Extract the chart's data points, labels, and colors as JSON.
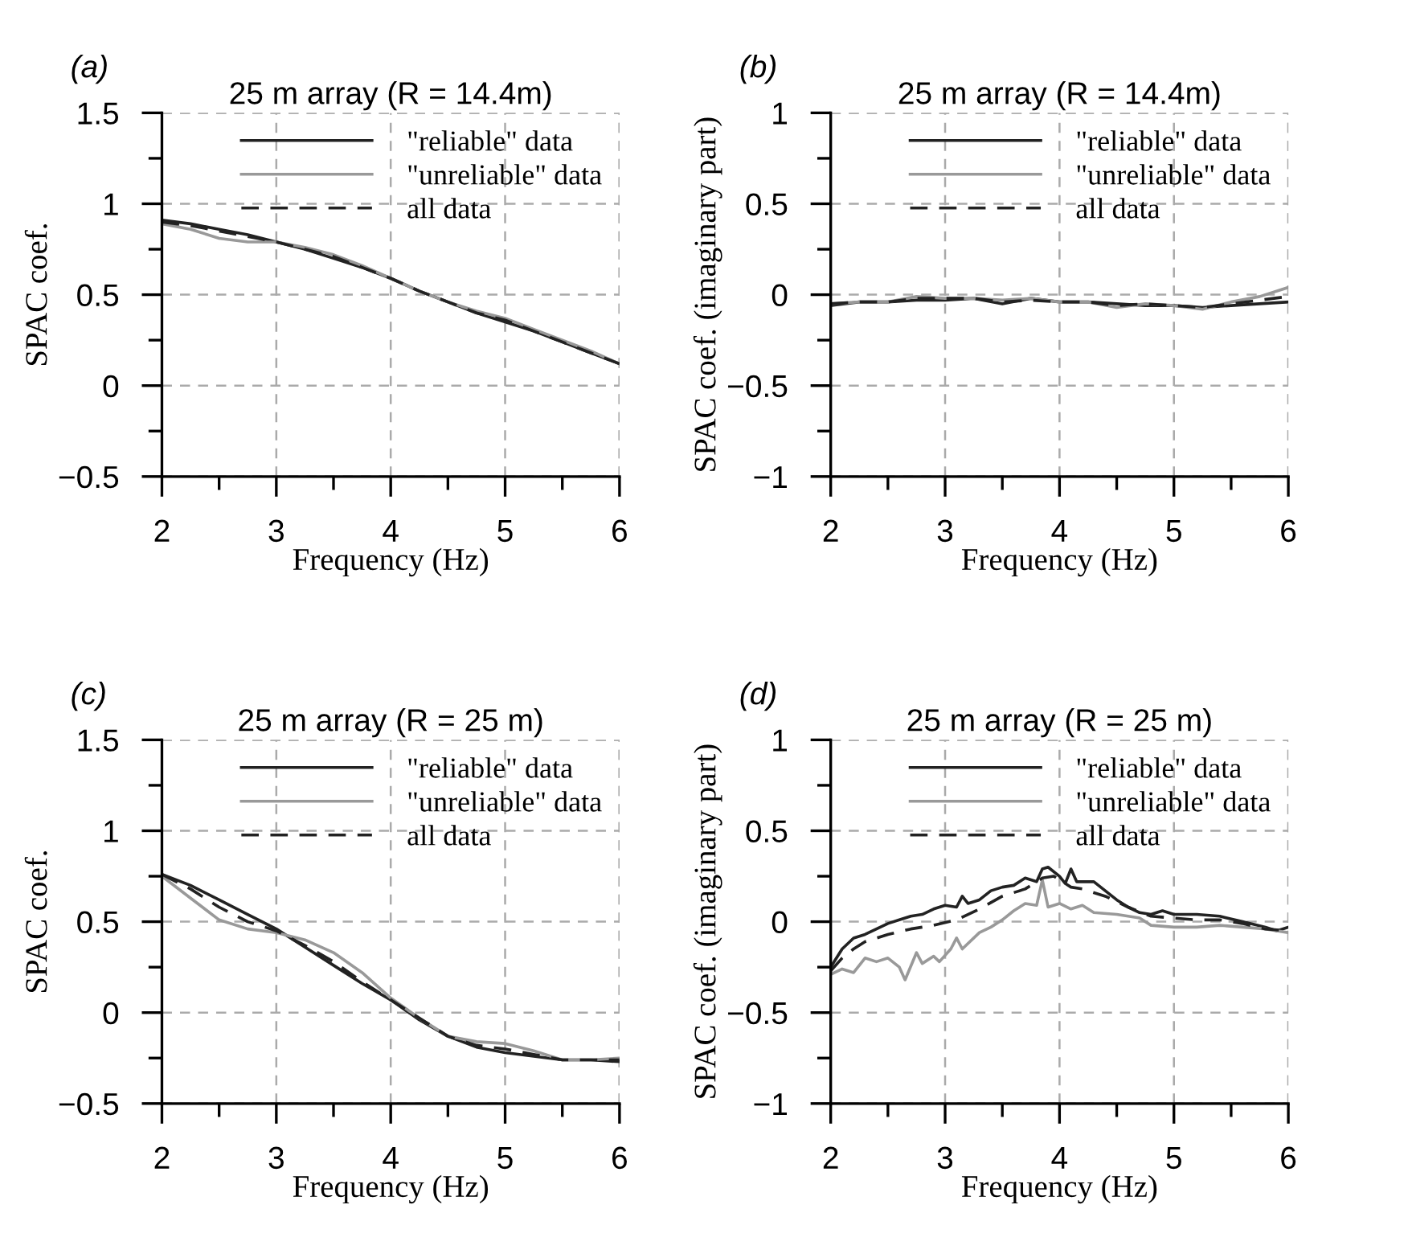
{
  "chart_data": [
    {
      "type": "line",
      "title": "25 m array (R = 14.4m)",
      "xlabel": "Frequency (Hz)",
      "ylabel": "SPAC coef.",
      "annotations": [
        "(a)"
      ],
      "xlim": [
        2,
        6
      ],
      "ylim": [
        -0.5,
        1.5
      ],
      "xticks": [
        2,
        {
          "value": 2.5,
          "label": null
        },
        3,
        {
          "value": 3.5,
          "label": null
        },
        4,
        {
          "value": 4.5,
          "label": null
        },
        5,
        {
          "value": 5.5,
          "label": null
        },
        6
      ],
      "yticks": [
        {
          "value": -0.5,
          "label": "−0.5"
        },
        {
          "value": -0.25,
          "label": null
        },
        0,
        {
          "value": 0.25,
          "label": null
        },
        0.5,
        {
          "value": 0.75,
          "label": null
        },
        1,
        {
          "value": 1.25,
          "label": null
        },
        1.5
      ],
      "grid": true,
      "legend": "top right",
      "x": [
        2,
        2.25,
        2.5,
        2.75,
        3,
        3.25,
        3.5,
        3.75,
        4,
        4.25,
        4.5,
        4.75,
        5,
        5.25,
        5.5,
        5.75,
        6
      ],
      "series": [
        {
          "name": "\"reliable\" data",
          "color": "#222222",
          "line_style": "solid",
          "values": [
            0.91,
            0.89,
            0.86,
            0.83,
            0.79,
            0.75,
            0.7,
            0.65,
            0.59,
            0.52,
            0.46,
            0.4,
            0.35,
            0.3,
            0.24,
            0.18,
            0.12
          ]
        },
        {
          "name": "\"unreliable\" data",
          "color": "#999999",
          "line_style": "solid",
          "values": [
            0.89,
            0.86,
            0.81,
            0.79,
            0.79,
            0.76,
            0.72,
            0.66,
            0.59,
            0.52,
            0.46,
            0.41,
            0.37,
            0.31,
            0.25,
            0.19,
            0.12
          ]
        },
        {
          "name": "all data",
          "color": "#222222",
          "line_style": "dashed",
          "values": [
            0.9,
            0.88,
            0.85,
            0.82,
            0.79,
            0.75,
            0.71,
            0.65,
            0.59,
            0.52,
            0.46,
            0.4,
            0.36,
            0.3,
            0.24,
            0.18,
            0.12
          ]
        }
      ]
    },
    {
      "type": "line",
      "title": "25 m array (R = 14.4m)",
      "xlabel": "Frequency (Hz)",
      "ylabel": "SPAC coef. (imaginary part)",
      "annotations": [
        "(b)"
      ],
      "xlim": [
        2,
        6
      ],
      "ylim": [
        -1,
        1
      ],
      "xticks": [
        2,
        {
          "value": 2.5,
          "label": null
        },
        3,
        {
          "value": 3.5,
          "label": null
        },
        4,
        {
          "value": 4.5,
          "label": null
        },
        5,
        {
          "value": 5.5,
          "label": null
        },
        6
      ],
      "yticks": [
        {
          "value": -1,
          "label": "−1"
        },
        {
          "value": -0.75,
          "label": null
        },
        {
          "value": -0.5,
          "label": "−0.5"
        },
        {
          "value": -0.25,
          "label": null
        },
        0,
        {
          "value": 0.25,
          "label": null
        },
        0.5,
        {
          "value": 0.75,
          "label": null
        },
        1
      ],
      "grid": true,
      "legend": "top right",
      "x": [
        2,
        2.25,
        2.5,
        2.75,
        3,
        3.25,
        3.5,
        3.75,
        4,
        4.25,
        4.5,
        4.75,
        5,
        5.25,
        5.5,
        5.75,
        6
      ],
      "series": [
        {
          "name": "\"reliable\" data",
          "color": "#222222",
          "line_style": "solid",
          "values": [
            -0.06,
            -0.04,
            -0.04,
            -0.03,
            -0.03,
            -0.02,
            -0.05,
            -0.02,
            -0.04,
            -0.04,
            -0.05,
            -0.06,
            -0.06,
            -0.07,
            -0.06,
            -0.05,
            -0.04
          ]
        },
        {
          "name": "\"unreliable\" data",
          "color": "#999999",
          "line_style": "solid",
          "values": [
            -0.05,
            -0.04,
            -0.04,
            -0.01,
            -0.02,
            -0.02,
            -0.03,
            -0.02,
            -0.04,
            -0.04,
            -0.07,
            -0.05,
            -0.06,
            -0.08,
            -0.04,
            -0.01,
            0.04
          ]
        },
        {
          "name": "all data",
          "color": "#222222",
          "line_style": "dashed",
          "values": [
            -0.05,
            -0.04,
            -0.04,
            -0.02,
            -0.02,
            -0.02,
            -0.04,
            -0.03,
            -0.04,
            -0.04,
            -0.06,
            -0.05,
            -0.06,
            -0.07,
            -0.05,
            -0.03,
            -0.01
          ]
        }
      ]
    },
    {
      "type": "line",
      "title": "25 m array (R = 25 m)",
      "xlabel": "Frequency (Hz)",
      "ylabel": "SPAC coef.",
      "annotations": [
        "(c)"
      ],
      "xlim": [
        2,
        6
      ],
      "ylim": [
        -0.5,
        1.5
      ],
      "xticks": [
        2,
        {
          "value": 2.5,
          "label": null
        },
        3,
        {
          "value": 3.5,
          "label": null
        },
        4,
        {
          "value": 4.5,
          "label": null
        },
        5,
        {
          "value": 5.5,
          "label": null
        },
        6
      ],
      "yticks": [
        {
          "value": -0.5,
          "label": "−0.5"
        },
        {
          "value": -0.25,
          "label": null
        },
        0,
        {
          "value": 0.25,
          "label": null
        },
        0.5,
        {
          "value": 0.75,
          "label": null
        },
        1,
        {
          "value": 1.25,
          "label": null
        },
        1.5
      ],
      "grid": true,
      "legend": "top right",
      "x": [
        2,
        2.25,
        2.5,
        2.75,
        3,
        3.25,
        3.5,
        3.75,
        4,
        4.25,
        4.5,
        4.75,
        5,
        5.25,
        5.5,
        5.75,
        6
      ],
      "series": [
        {
          "name": "\"reliable\" data",
          "color": "#222222",
          "line_style": "solid",
          "values": [
            0.76,
            0.7,
            0.62,
            0.54,
            0.46,
            0.36,
            0.26,
            0.16,
            0.07,
            -0.04,
            -0.13,
            -0.19,
            -0.22,
            -0.24,
            -0.26,
            -0.26,
            -0.27
          ]
        },
        {
          "name": "\"unreliable\" data",
          "color": "#999999",
          "line_style": "solid",
          "values": [
            0.75,
            0.63,
            0.51,
            0.46,
            0.44,
            0.4,
            0.33,
            0.22,
            0.08,
            -0.03,
            -0.13,
            -0.16,
            -0.17,
            -0.21,
            -0.26,
            -0.26,
            -0.25
          ]
        },
        {
          "name": "all data",
          "color": "#222222",
          "line_style": "dashed",
          "values": [
            0.76,
            0.68,
            0.58,
            0.5,
            0.45,
            0.37,
            0.28,
            0.17,
            0.07,
            -0.03,
            -0.13,
            -0.18,
            -0.2,
            -0.23,
            -0.26,
            -0.26,
            -0.26
          ]
        }
      ]
    },
    {
      "type": "line",
      "title": "25 m array (R = 25 m)",
      "xlabel": "Frequency (Hz)",
      "ylabel": "SPAC coef. (imaginary part)",
      "annotations": [
        "(d)"
      ],
      "xlim": [
        2,
        6
      ],
      "ylim": [
        -1,
        1
      ],
      "xticks": [
        2,
        {
          "value": 2.5,
          "label": null
        },
        3,
        {
          "value": 3.5,
          "label": null
        },
        4,
        {
          "value": 4.5,
          "label": null
        },
        5,
        {
          "value": 5.5,
          "label": null
        },
        6
      ],
      "yticks": [
        {
          "value": -1,
          "label": "−1"
        },
        {
          "value": -0.75,
          "label": null
        },
        {
          "value": -0.5,
          "label": "−0.5"
        },
        {
          "value": -0.25,
          "label": null
        },
        0,
        {
          "value": 0.25,
          "label": null
        },
        0.5,
        {
          "value": 0.75,
          "label": null
        },
        1
      ],
      "grid": true,
      "legend": "top right",
      "series": [
        {
          "name": "\"reliable\" data",
          "color": "#222222",
          "line_style": "solid",
          "x": [
            2,
            2.1,
            2.2,
            2.3,
            2.4,
            2.5,
            2.6,
            2.7,
            2.8,
            2.9,
            3.0,
            3.1,
            3.15,
            3.2,
            3.3,
            3.4,
            3.5,
            3.6,
            3.7,
            3.8,
            3.85,
            3.9,
            4.0,
            4.05,
            4.1,
            4.15,
            4.3,
            4.4,
            4.5,
            4.6,
            4.7,
            4.8,
            4.9,
            5.0,
            5.2,
            5.4,
            5.6,
            5.8,
            5.9,
            6.0
          ],
          "values": [
            -0.25,
            -0.15,
            -0.09,
            -0.07,
            -0.04,
            -0.01,
            0.01,
            0.03,
            0.04,
            0.07,
            0.09,
            0.08,
            0.14,
            0.1,
            0.12,
            0.17,
            0.19,
            0.2,
            0.24,
            0.22,
            0.29,
            0.3,
            0.25,
            0.21,
            0.29,
            0.22,
            0.22,
            0.17,
            0.12,
            0.08,
            0.05,
            0.04,
            0.06,
            0.04,
            0.04,
            0.03,
            0.0,
            -0.03,
            -0.05,
            -0.03
          ]
        },
        {
          "name": "\"unreliable\" data",
          "color": "#999999",
          "line_style": "solid",
          "x": [
            2,
            2.1,
            2.2,
            2.3,
            2.4,
            2.5,
            2.6,
            2.65,
            2.75,
            2.8,
            2.9,
            2.95,
            3.05,
            3.1,
            3.15,
            3.3,
            3.4,
            3.5,
            3.6,
            3.7,
            3.8,
            3.85,
            3.9,
            4.0,
            4.1,
            4.2,
            4.3,
            4.5,
            4.7,
            4.8,
            5.0,
            5.2,
            5.4,
            5.6,
            5.8,
            6.0
          ],
          "values": [
            -0.29,
            -0.26,
            -0.28,
            -0.2,
            -0.22,
            -0.2,
            -0.25,
            -0.32,
            -0.17,
            -0.23,
            -0.19,
            -0.22,
            -0.15,
            -0.09,
            -0.15,
            -0.06,
            -0.03,
            0.01,
            0.06,
            0.1,
            0.09,
            0.23,
            0.08,
            0.1,
            0.07,
            0.09,
            0.05,
            0.04,
            0.02,
            -0.02,
            -0.03,
            -0.03,
            -0.02,
            -0.03,
            -0.04,
            -0.06
          ]
        },
        {
          "name": "all data",
          "color": "#222222",
          "line_style": "dashed",
          "x": [
            2,
            2.1,
            2.2,
            2.3,
            2.5,
            2.7,
            2.9,
            3.1,
            3.3,
            3.5,
            3.7,
            3.85,
            3.95,
            4.1,
            4.2,
            4.4,
            4.6,
            4.8,
            5.0,
            5.2,
            5.4,
            5.6,
            5.8,
            6.0
          ],
          "values": [
            -0.27,
            -0.2,
            -0.15,
            -0.11,
            -0.07,
            -0.04,
            -0.02,
            0.01,
            0.07,
            0.14,
            0.18,
            0.24,
            0.25,
            0.19,
            0.18,
            0.14,
            0.08,
            0.03,
            0.02,
            0.01,
            0.01,
            -0.01,
            -0.04,
            -0.05
          ]
        }
      ]
    }
  ]
}
